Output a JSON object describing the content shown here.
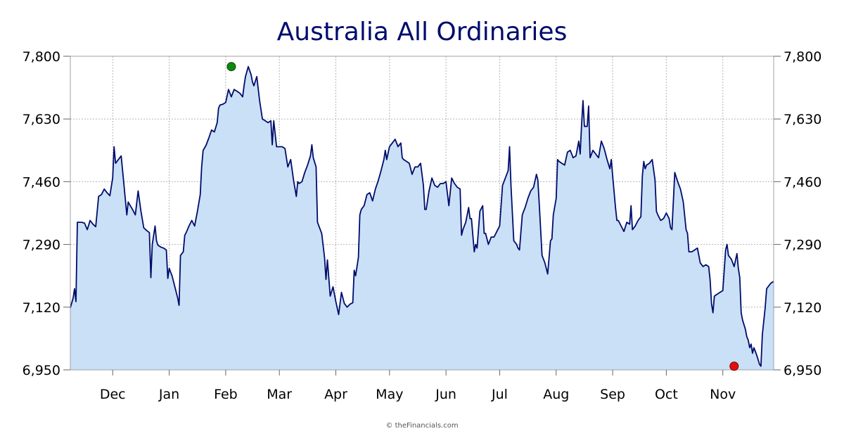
{
  "chart_data": {
    "type": "area",
    "title": "Australia All Ordinaries",
    "xlabel": "",
    "ylabel": "",
    "credit": "© theFinancials.com",
    "ylim": [
      6950,
      7800
    ],
    "yticks": [
      "6,950",
      "7,120",
      "7,290",
      "7,460",
      "7,630",
      "7,800"
    ],
    "ytick_values": [
      6950,
      7120,
      7290,
      7460,
      7630,
      7800
    ],
    "xlim": [
      0,
      240
    ],
    "month_ticks": [
      {
        "label": "Dec",
        "x": 15
      },
      {
        "label": "Jan",
        "x": 35
      },
      {
        "label": "Feb",
        "x": 55
      },
      {
        "label": "Mar",
        "x": 74
      },
      {
        "label": "Apr",
        "x": 94
      },
      {
        "label": "May",
        "x": 113
      },
      {
        "label": "Jun",
        "x": 133
      },
      {
        "label": "Jul",
        "x": 152
      },
      {
        "label": "Aug",
        "x": 172
      },
      {
        "label": "Sep",
        "x": 192
      },
      {
        "label": "Oct",
        "x": 211
      },
      {
        "label": "Nov",
        "x": 231
      }
    ],
    "grid": true,
    "colors": {
      "line": "#000c6b",
      "fill": "#c9e0f7",
      "grid": "#b4b4b4",
      "axis": "#a0a0a0",
      "high": "#0a8a0a",
      "low": "#e01010"
    },
    "high": {
      "x": 57,
      "y": 7772
    },
    "low": {
      "x": 235,
      "y": 6960
    },
    "series": [
      {
        "values": [
          [
            0,
            7118
          ],
          [
            1,
            7145
          ],
          [
            1.5,
            7170
          ],
          [
            2,
            7135
          ],
          [
            2.5,
            7350
          ],
          [
            4,
            7350
          ],
          [
            5,
            7348
          ],
          [
            6,
            7330
          ],
          [
            7,
            7355
          ],
          [
            8,
            7345
          ],
          [
            9,
            7338
          ],
          [
            9.5,
            7380
          ],
          [
            10,
            7420
          ],
          [
            11,
            7425
          ],
          [
            12,
            7440
          ],
          [
            13,
            7430
          ],
          [
            14,
            7422
          ],
          [
            15,
            7470
          ],
          [
            15.5,
            7555
          ],
          [
            16,
            7510
          ],
          [
            17,
            7520
          ],
          [
            18,
            7530
          ],
          [
            19,
            7450
          ],
          [
            20,
            7370
          ],
          [
            20.5,
            7405
          ],
          [
            21,
            7398
          ],
          [
            22,
            7385
          ],
          [
            23,
            7370
          ],
          [
            24,
            7435
          ],
          [
            25,
            7380
          ],
          [
            26,
            7335
          ],
          [
            27,
            7328
          ],
          [
            28,
            7322
          ],
          [
            28.5,
            7200
          ],
          [
            29,
            7290
          ],
          [
            30,
            7340
          ],
          [
            30.5,
            7300
          ],
          [
            31,
            7288
          ],
          [
            32,
            7283
          ],
          [
            33,
            7280
          ],
          [
            34,
            7275
          ],
          [
            34.5,
            7198
          ],
          [
            35,
            7225
          ],
          [
            36,
            7205
          ],
          [
            37,
            7175
          ],
          [
            38,
            7145
          ],
          [
            38.5,
            7125
          ],
          [
            39,
            7260
          ],
          [
            40,
            7270
          ],
          [
            40.5,
            7315
          ],
          [
            41,
            7322
          ],
          [
            42,
            7340
          ],
          [
            43,
            7355
          ],
          [
            44,
            7340
          ],
          [
            45,
            7380
          ],
          [
            46,
            7425
          ],
          [
            46.5,
            7500
          ],
          [
            47,
            7545
          ],
          [
            48,
            7558
          ],
          [
            49,
            7578
          ],
          [
            50,
            7600
          ],
          [
            51,
            7595
          ],
          [
            52,
            7620
          ],
          [
            52.5,
            7660
          ],
          [
            53,
            7668
          ],
          [
            54,
            7670
          ],
          [
            55,
            7675
          ],
          [
            56,
            7710
          ],
          [
            57,
            7690
          ],
          [
            58,
            7710
          ],
          [
            59,
            7705
          ],
          [
            60,
            7700
          ],
          [
            61,
            7690
          ],
          [
            61.5,
            7720
          ],
          [
            62,
            7745
          ],
          [
            63,
            7772
          ],
          [
            64,
            7750
          ],
          [
            64.5,
            7730
          ],
          [
            65,
            7720
          ],
          [
            66,
            7745
          ],
          [
            67,
            7680
          ],
          [
            68,
            7630
          ],
          [
            69,
            7625
          ],
          [
            70,
            7620
          ],
          [
            71,
            7625
          ],
          [
            71.5,
            7560
          ],
          [
            72,
            7625
          ],
          [
            73,
            7555
          ],
          [
            74,
            7555
          ],
          [
            75,
            7555
          ],
          [
            76,
            7550
          ],
          [
            77,
            7500
          ],
          [
            78,
            7520
          ],
          [
            79,
            7465
          ],
          [
            80,
            7420
          ],
          [
            80.5,
            7460
          ],
          [
            81,
            7455
          ],
          [
            82,
            7460
          ],
          [
            83,
            7485
          ],
          [
            84,
            7505
          ],
          [
            85,
            7530
          ],
          [
            85.5,
            7560
          ],
          [
            86,
            7525
          ],
          [
            87,
            7500
          ],
          [
            87.5,
            7350
          ],
          [
            88,
            7340
          ],
          [
            89,
            7320
          ],
          [
            90,
            7255
          ],
          [
            90.5,
            7195
          ],
          [
            91,
            7248
          ],
          [
            92,
            7150
          ],
          [
            93,
            7175
          ],
          [
            94,
            7135
          ],
          [
            95,
            7100
          ],
          [
            96,
            7160
          ],
          [
            97,
            7130
          ],
          [
            98,
            7120
          ],
          [
            99,
            7128
          ],
          [
            100,
            7132
          ],
          [
            100.5,
            7220
          ],
          [
            101,
            7205
          ],
          [
            101.5,
            7230
          ],
          [
            102,
            7255
          ],
          [
            102.5,
            7370
          ],
          [
            103,
            7385
          ],
          [
            104,
            7395
          ],
          [
            105,
            7425
          ],
          [
            106,
            7430
          ],
          [
            107,
            7408
          ],
          [
            108,
            7440
          ],
          [
            109,
            7463
          ],
          [
            110,
            7490
          ],
          [
            111,
            7520
          ],
          [
            111.5,
            7545
          ],
          [
            112,
            7520
          ],
          [
            113,
            7555
          ],
          [
            114,
            7565
          ],
          [
            115,
            7575
          ],
          [
            116,
            7555
          ],
          [
            117,
            7565
          ],
          [
            117.5,
            7525
          ],
          [
            118,
            7520
          ],
          [
            119,
            7515
          ],
          [
            120,
            7510
          ],
          [
            121,
            7480
          ],
          [
            122,
            7500
          ],
          [
            123,
            7500
          ],
          [
            124,
            7510
          ],
          [
            125,
            7450
          ],
          [
            125.5,
            7385
          ],
          [
            126,
            7385
          ],
          [
            127,
            7435
          ],
          [
            128,
            7470
          ],
          [
            129,
            7450
          ],
          [
            130,
            7445
          ],
          [
            131,
            7455
          ],
          [
            132,
            7455
          ],
          [
            133,
            7460
          ],
          [
            134,
            7395
          ],
          [
            135,
            7470
          ],
          [
            136,
            7455
          ],
          [
            137,
            7445
          ],
          [
            138,
            7440
          ],
          [
            138.5,
            7315
          ],
          [
            139,
            7330
          ],
          [
            140,
            7350
          ],
          [
            141,
            7390
          ],
          [
            141.5,
            7360
          ],
          [
            142,
            7360
          ],
          [
            143,
            7270
          ],
          [
            143.5,
            7290
          ],
          [
            144,
            7280
          ],
          [
            145,
            7380
          ],
          [
            146,
            7395
          ],
          [
            146.5,
            7320
          ],
          [
            147,
            7320
          ],
          [
            148,
            7290
          ],
          [
            149,
            7310
          ],
          [
            150,
            7310
          ],
          [
            151,
            7325
          ],
          [
            152,
            7340
          ],
          [
            153,
            7450
          ],
          [
            154,
            7470
          ],
          [
            155,
            7490
          ],
          [
            155.5,
            7555
          ],
          [
            156,
            7450
          ],
          [
            157,
            7300
          ],
          [
            158,
            7290
          ],
          [
            158.5,
            7280
          ],
          [
            159,
            7275
          ],
          [
            160,
            7370
          ],
          [
            161,
            7390
          ],
          [
            162,
            7415
          ],
          [
            163,
            7435
          ],
          [
            164,
            7445
          ],
          [
            165,
            7480
          ],
          [
            165.5,
            7465
          ],
          [
            166,
            7400
          ],
          [
            167,
            7260
          ],
          [
            168,
            7240
          ],
          [
            169,
            7210
          ],
          [
            170,
            7300
          ],
          [
            170.5,
            7305
          ],
          [
            171,
            7370
          ],
          [
            172,
            7415
          ],
          [
            172.5,
            7520
          ],
          [
            173,
            7515
          ],
          [
            174,
            7510
          ],
          [
            175,
            7505
          ],
          [
            176,
            7540
          ],
          [
            177,
            7545
          ],
          [
            178,
            7525
          ],
          [
            179,
            7530
          ],
          [
            180,
            7570
          ],
          [
            180.5,
            7535
          ],
          [
            181,
            7615
          ],
          [
            181.5,
            7680
          ],
          [
            182,
            7610
          ],
          [
            183,
            7610
          ],
          [
            183.5,
            7665
          ],
          [
            184,
            7525
          ],
          [
            185,
            7545
          ],
          [
            186,
            7535
          ],
          [
            187,
            7525
          ],
          [
            188,
            7570
          ],
          [
            189,
            7550
          ],
          [
            190,
            7520
          ],
          [
            191,
            7495
          ],
          [
            191.5,
            7520
          ],
          [
            192,
            7475
          ],
          [
            193,
            7390
          ],
          [
            193.5,
            7355
          ],
          [
            194,
            7355
          ],
          [
            195,
            7340
          ],
          [
            196,
            7325
          ],
          [
            197,
            7350
          ],
          [
            198,
            7345
          ],
          [
            198.5,
            7395
          ],
          [
            199,
            7330
          ],
          [
            200,
            7340
          ],
          [
            201,
            7355
          ],
          [
            202,
            7365
          ],
          [
            202.5,
            7475
          ],
          [
            203,
            7515
          ],
          [
            203.5,
            7495
          ],
          [
            204,
            7505
          ],
          [
            205,
            7510
          ],
          [
            206,
            7520
          ],
          [
            207,
            7465
          ],
          [
            207.5,
            7380
          ],
          [
            208,
            7370
          ],
          [
            209,
            7355
          ],
          [
            210,
            7360
          ],
          [
            211,
            7375
          ],
          [
            212,
            7360
          ],
          [
            212.5,
            7335
          ],
          [
            213,
            7330
          ],
          [
            214,
            7485
          ],
          [
            215,
            7460
          ],
          [
            216,
            7440
          ],
          [
            217,
            7405
          ],
          [
            218,
            7330
          ],
          [
            218.5,
            7320
          ],
          [
            219,
            7270
          ],
          [
            220,
            7270
          ],
          [
            221,
            7275
          ],
          [
            222,
            7280
          ],
          [
            223,
            7240
          ],
          [
            224,
            7230
          ],
          [
            225,
            7235
          ],
          [
            226,
            7230
          ],
          [
            226.5,
            7195
          ],
          [
            227,
            7130
          ],
          [
            227.5,
            7105
          ],
          [
            228,
            7150
          ],
          [
            229,
            7155
          ],
          [
            230,
            7160
          ],
          [
            231,
            7165
          ],
          [
            232,
            7275
          ],
          [
            232.5,
            7290
          ],
          [
            233,
            7260
          ],
          [
            234,
            7250
          ],
          [
            235,
            7230
          ],
          [
            236,
            7265
          ],
          [
            236.5,
            7225
          ],
          [
            237,
            7200
          ],
          [
            237.5,
            7105
          ],
          [
            238,
            7085
          ],
          [
            239,
            7060
          ],
          [
            239.5,
            7040
          ],
          [
            240,
            7030
          ],
          [
            240.5,
            7010
          ],
          [
            241,
            7020
          ],
          [
            241.5,
            6995
          ],
          [
            242,
            7010
          ],
          [
            243,
            6990
          ],
          [
            244,
            6965
          ],
          [
            244.5,
            6960
          ],
          [
            245,
            7045
          ],
          [
            246,
            7120
          ],
          [
            246.5,
            7170
          ],
          [
            247,
            7175
          ],
          [
            248,
            7185
          ],
          [
            249,
            7190
          ]
        ]
      }
    ]
  }
}
